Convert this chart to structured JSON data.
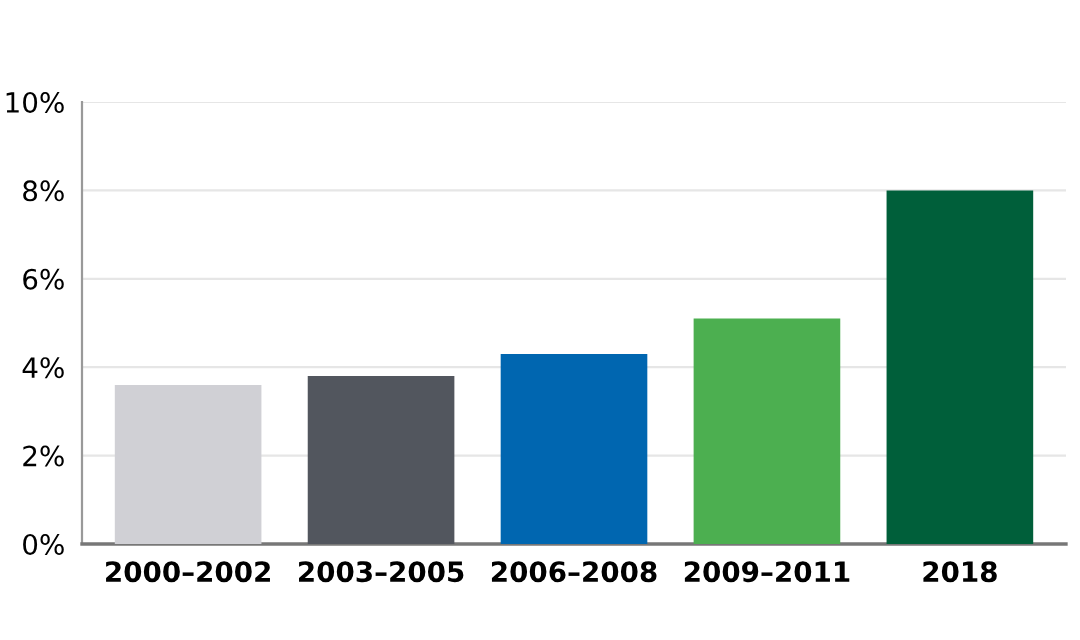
{
  "chart_data": {
    "type": "bar",
    "categories": [
      "2000–2002",
      "2003–2005",
      "2006–2008",
      "2009–2011",
      "2018"
    ],
    "values": [
      3.6,
      3.8,
      4.3,
      5.1,
      8.0
    ],
    "colors": [
      "#d0d0d5",
      "#52565e",
      "#0066b0",
      "#4caf50",
      "#005f3a"
    ],
    "ylim": [
      0,
      10
    ],
    "yticks": [
      {
        "value": 0,
        "label": "0%"
      },
      {
        "value": 2,
        "label": "2%"
      },
      {
        "value": 4,
        "label": "4%"
      },
      {
        "value": 6,
        "label": "6%"
      },
      {
        "value": 8,
        "label": "8%"
      },
      {
        "value": 10,
        "label": "10%"
      }
    ],
    "grid": "y"
  }
}
